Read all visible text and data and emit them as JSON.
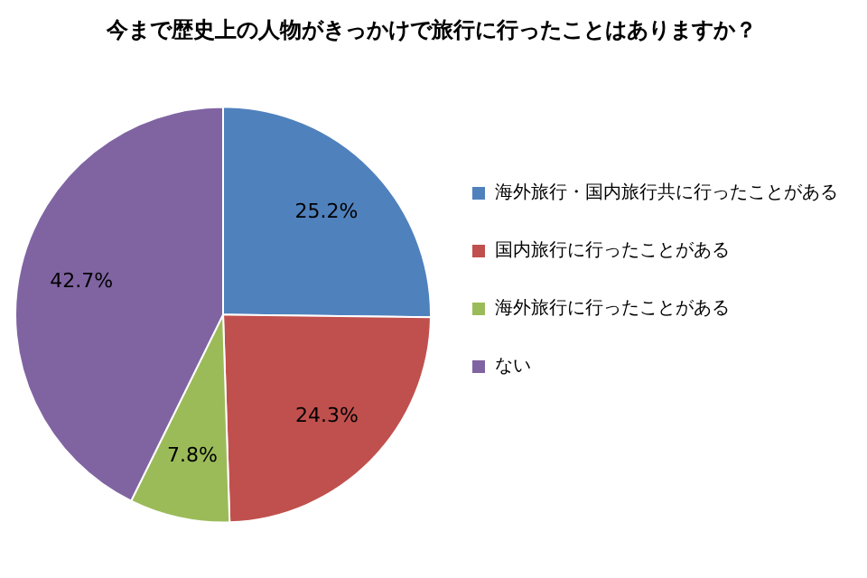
{
  "chart_data": {
    "type": "pie",
    "title": "今まで歴史上の人物がきっかけで旅行に行ったことはありますか？",
    "categories": [
      "海外旅行・国内旅行共に行ったことがある",
      "国内旅行に行ったことがある",
      "海外旅行に行ったことがある",
      "ない"
    ],
    "values": [
      25.2,
      24.3,
      7.8,
      42.7
    ],
    "colors": [
      "#4f81bd",
      "#c0504d",
      "#9bbb59",
      "#8064a2"
    ],
    "value_labels": [
      "25.2%",
      "24.3%",
      "7.8%",
      "42.7%"
    ],
    "legend": "right"
  }
}
